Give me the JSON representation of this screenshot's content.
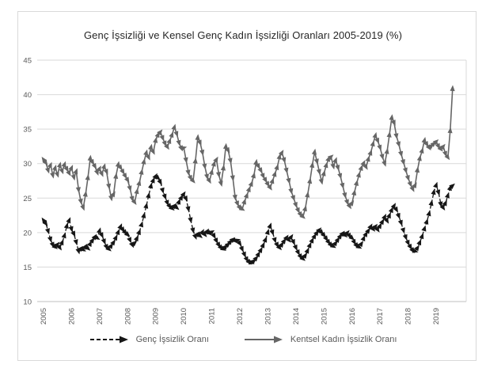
{
  "chart_data": {
    "type": "line",
    "title": "Genç İşsizliği ve Kensel Genç Kadın İşsizliği Oranları 2005-2019 (%)",
    "x_unit": "monthly",
    "x_start": "2005-01",
    "x_end": "2019-08",
    "x_tick_labels": [
      "2005",
      "2006",
      "2007",
      "2008",
      "2009",
      "2010",
      "2011",
      "2012",
      "2013",
      "2014",
      "2015",
      "2016",
      "2017",
      "2018",
      "2019"
    ],
    "y_ticks": [
      10,
      15,
      20,
      25,
      30,
      35,
      40,
      45
    ],
    "ylim": [
      10,
      45
    ],
    "grid": "horizontal",
    "legend_position": "bottom",
    "colors": {
      "youth_series": "#161616",
      "urban_women_series": "#666666",
      "gridline": "#d9d9d9",
      "axis_line": "#bfbfbf",
      "tick_label": "#595959",
      "title": "#262626"
    },
    "series": [
      {
        "name": "Genç İşsizlik Oranı",
        "color": "#161616",
        "line_style": "dashed",
        "marker": "arrow",
        "values": [
          21.8,
          21.3,
          20.2,
          19.0,
          18.2,
          17.9,
          18.3,
          17.8,
          18.6,
          19.6,
          21.0,
          21.8,
          20.5,
          19.8,
          18.6,
          17.3,
          17.7,
          17.5,
          18.0,
          17.7,
          18.4,
          18.9,
          19.4,
          19.2,
          20.3,
          19.6,
          18.7,
          17.9,
          17.6,
          18.1,
          18.6,
          19.3,
          20.1,
          20.9,
          20.4,
          20.0,
          19.7,
          18.9,
          18.2,
          18.5,
          19.2,
          20.1,
          21.2,
          22.5,
          23.9,
          25.4,
          26.8,
          27.6,
          28.2,
          27.9,
          27.3,
          26.1,
          25.2,
          24.3,
          23.8,
          23.5,
          23.9,
          23.6,
          24.5,
          25.1,
          25.6,
          24.9,
          23.4,
          21.8,
          20.3,
          19.4,
          19.8,
          19.5,
          20.1,
          19.7,
          20.2,
          19.9,
          20.1,
          19.5,
          18.8,
          18.2,
          17.8,
          17.6,
          18.0,
          18.3,
          18.7,
          19.0,
          18.8,
          18.9,
          18.4,
          17.6,
          16.8,
          16.1,
          15.7,
          15.6,
          15.9,
          16.3,
          16.9,
          17.5,
          18.2,
          19.0,
          20.1,
          21.0,
          20.0,
          18.9,
          18.2,
          17.8,
          18.3,
          18.8,
          19.3,
          18.9,
          19.4,
          18.6,
          17.8,
          17.1,
          16.5,
          16.2,
          16.7,
          17.4,
          18.2,
          18.9,
          19.5,
          20.0,
          20.4,
          20.0,
          19.6,
          19.1,
          18.6,
          18.2,
          18.0,
          18.5,
          19.0,
          19.5,
          19.9,
          19.6,
          20.0,
          19.5,
          19.2,
          18.6,
          18.1,
          17.9,
          18.4,
          19.2,
          19.8,
          20.3,
          20.9,
          20.5,
          20.9,
          20.4,
          21.0,
          21.6,
          22.3,
          21.7,
          22.5,
          23.3,
          23.9,
          23.3,
          22.4,
          21.4,
          20.3,
          19.3,
          18.5,
          17.9,
          17.4,
          17.3,
          17.8,
          18.6,
          19.5,
          20.6,
          21.6,
          22.8,
          24.3,
          25.9,
          26.9,
          25.8,
          24.1,
          23.6,
          24.3,
          25.4,
          26.5,
          26.8
        ]
      },
      {
        "name": "Kentsel Kadın İşsizlik Oranı",
        "color": "#666666",
        "line_style": "solid",
        "marker": "arrow",
        "values": [
          30.6,
          30.1,
          29.0,
          29.8,
          28.3,
          29.4,
          28.4,
          29.8,
          28.9,
          29.9,
          29.2,
          28.6,
          29.4,
          28.0,
          28.9,
          26.2,
          24.5,
          23.6,
          25.6,
          28.0,
          30.8,
          30.2,
          29.6,
          28.7,
          29.3,
          28.5,
          29.6,
          28.8,
          26.7,
          25.0,
          25.6,
          28.2,
          29.9,
          29.4,
          28.8,
          28.2,
          27.6,
          26.4,
          24.9,
          24.4,
          26.0,
          27.2,
          28.8,
          30.3,
          31.6,
          30.9,
          32.4,
          31.7,
          33.4,
          34.2,
          34.6,
          33.7,
          32.9,
          32.4,
          33.3,
          34.2,
          35.3,
          34.3,
          33.0,
          32.2,
          32.3,
          30.5,
          28.7,
          27.9,
          27.5,
          30.4,
          33.8,
          33.0,
          31.6,
          29.6,
          28.1,
          27.5,
          28.8,
          30.0,
          30.6,
          28.4,
          27.1,
          29.4,
          32.5,
          31.9,
          30.4,
          27.9,
          25.1,
          24.2,
          23.6,
          23.4,
          24.5,
          25.4,
          26.3,
          27.1,
          28.3,
          30.2,
          29.6,
          29.0,
          28.2,
          27.6,
          27.0,
          26.5,
          27.5,
          28.5,
          29.5,
          31.0,
          31.6,
          30.5,
          29.0,
          27.5,
          26.0,
          25.0,
          24.0,
          23.2,
          22.6,
          22.3,
          23.5,
          25.5,
          27.5,
          29.8,
          31.7,
          30.3,
          28.8,
          27.4,
          28.6,
          29.8,
          30.7,
          31.0,
          29.6,
          30.5,
          29.4,
          28.2,
          26.8,
          25.4,
          24.4,
          23.8,
          24.3,
          25.8,
          27.2,
          28.4,
          29.4,
          30.1,
          29.5,
          30.7,
          31.6,
          32.9,
          34.1,
          33.3,
          32.3,
          31.0,
          30.0,
          31.8,
          34.2,
          36.7,
          35.9,
          34.0,
          32.8,
          31.4,
          30.2,
          29.0,
          27.9,
          27.0,
          26.3,
          26.9,
          29.1,
          30.8,
          31.9,
          33.4,
          32.8,
          32.3,
          32.6,
          32.9,
          33.2,
          32.5,
          32.1,
          32.5,
          31.4,
          30.9,
          34.8,
          40.9
        ]
      }
    ]
  },
  "legend": {
    "items": [
      {
        "label": "Genç İşsizlik Oranı"
      },
      {
        "label": "Kentsel Kadın İşsizlik Oranı"
      }
    ]
  }
}
